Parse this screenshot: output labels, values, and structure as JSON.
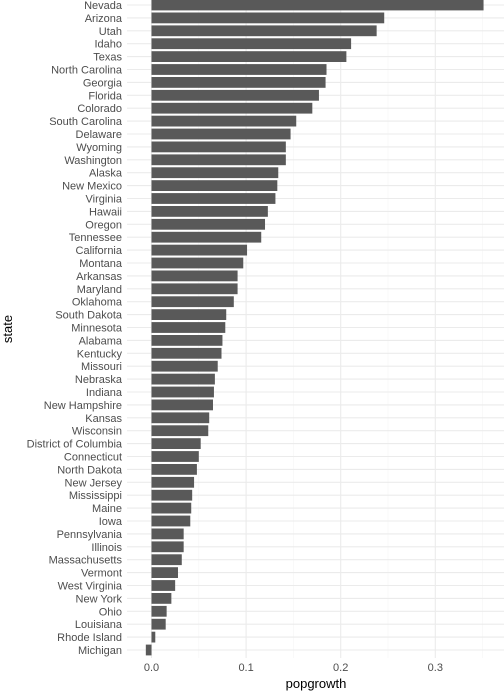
{
  "chart_data": {
    "type": "bar",
    "orientation": "horizontal",
    "xlabel": "popgrowth",
    "ylabel": "state",
    "xlim": [
      -0.005,
      0.355
    ],
    "x_ticks": [
      0.0,
      0.1,
      0.2,
      0.3
    ],
    "x_tick_labels": [
      "0.0",
      "0.1",
      "0.2",
      "0.3"
    ],
    "grid": true,
    "bar_color": "#595959",
    "grid_major_color": "#ebebeb",
    "grid_minor_color": "#f5f5f5",
    "categories": [
      "Nevada",
      "Arizona",
      "Utah",
      "Idaho",
      "Texas",
      "North Carolina",
      "Georgia",
      "Florida",
      "Colorado",
      "South Carolina",
      "Delaware",
      "Wyoming",
      "Washington",
      "Alaska",
      "New Mexico",
      "Virginia",
      "Hawaii",
      "Oregon",
      "Tennessee",
      "California",
      "Montana",
      "Arkansas",
      "Maryland",
      "Oklahoma",
      "South Dakota",
      "Minnesota",
      "Alabama",
      "Kentucky",
      "Missouri",
      "Nebraska",
      "Indiana",
      "New Hampshire",
      "Kansas",
      "Wisconsin",
      "District of Columbia",
      "Connecticut",
      "North Dakota",
      "New Jersey",
      "Mississippi",
      "Maine",
      "Iowa",
      "Pennsylvania",
      "Illinois",
      "Massachusetts",
      "Vermont",
      "West Virginia",
      "New York",
      "Ohio",
      "Louisiana",
      "Rhode Island",
      "Michigan"
    ],
    "values": [
      0.351,
      0.246,
      0.238,
      0.211,
      0.206,
      0.185,
      0.184,
      0.177,
      0.17,
      0.153,
      0.147,
      0.142,
      0.142,
      0.134,
      0.133,
      0.131,
      0.123,
      0.12,
      0.116,
      0.101,
      0.097,
      0.091,
      0.091,
      0.087,
      0.079,
      0.078,
      0.075,
      0.074,
      0.07,
      0.067,
      0.066,
      0.065,
      0.061,
      0.06,
      0.052,
      0.05,
      0.048,
      0.045,
      0.043,
      0.042,
      0.041,
      0.034,
      0.034,
      0.032,
      0.028,
      0.025,
      0.021,
      0.016,
      0.015,
      0.004,
      -0.006
    ]
  }
}
